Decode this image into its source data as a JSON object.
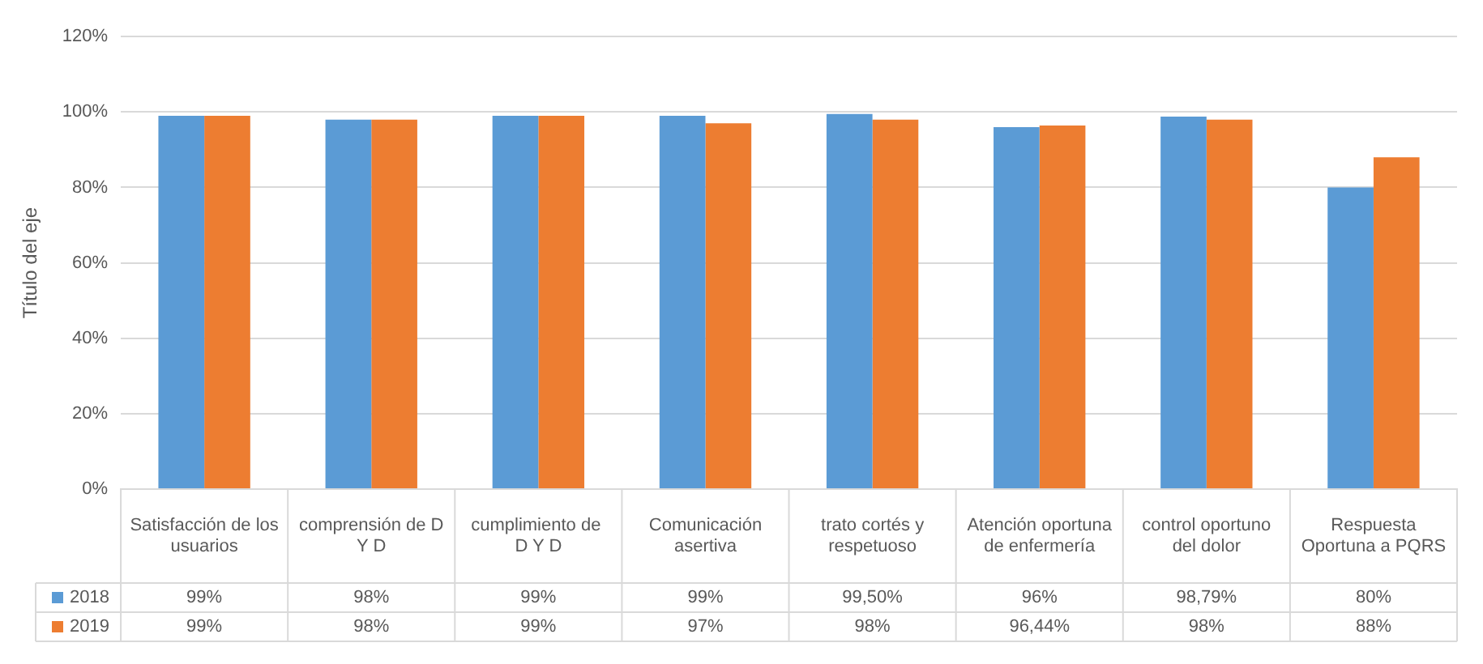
{
  "chart_data": {
    "type": "bar",
    "ylabel": "Título del eje",
    "categories": [
      "Satisfacción de los usuarios",
      "comprensión de D Y D",
      "cumplimiento de  D Y D",
      "Comunicación asertiva",
      "trato cortés y respetuoso",
      "Atención oportuna de enfermería",
      "control oportuno del dolor",
      "Respuesta Oportuna a PQRS"
    ],
    "series": [
      {
        "name": "2018",
        "color": "#5b9bd5",
        "values": [
          99,
          98,
          99,
          99,
          99.5,
          96,
          98.79,
          80
        ],
        "value_labels": [
          "99%",
          "98%",
          "99%",
          "99%",
          "99,50%",
          "96%",
          "98,79%",
          "80%"
        ]
      },
      {
        "name": "2019",
        "color": "#ed7d31",
        "values": [
          99,
          98,
          99,
          97,
          98,
          96.44,
          98,
          88
        ],
        "value_labels": [
          "99%",
          "98%",
          "99%",
          "97%",
          "98%",
          "96,44%",
          "98%",
          "88%"
        ]
      }
    ],
    "ylim": [
      0,
      120
    ],
    "yticks": [
      {
        "value": 0,
        "label": "0%"
      },
      {
        "value": 20,
        "label": "20%"
      },
      {
        "value": 40,
        "label": "40%"
      },
      {
        "value": 60,
        "label": "60%"
      },
      {
        "value": 80,
        "label": "80%"
      },
      {
        "value": 100,
        "label": "100%"
      },
      {
        "value": 120,
        "label": "120%"
      }
    ],
    "grid": "y",
    "legend": "bottom left"
  }
}
